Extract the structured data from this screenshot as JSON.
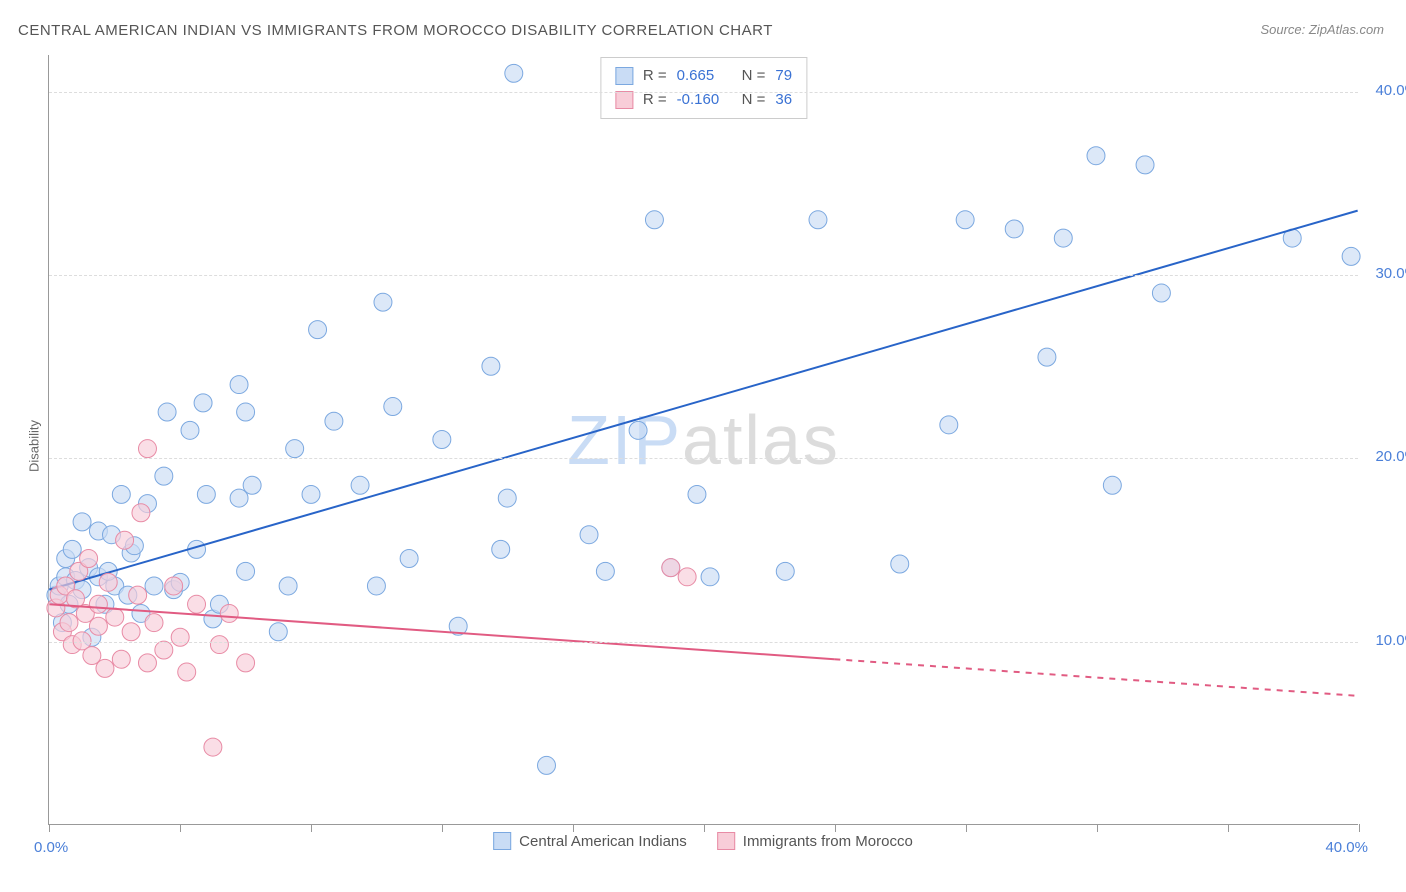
{
  "title": "CENTRAL AMERICAN INDIAN VS IMMIGRANTS FROM MOROCCO DISABILITY CORRELATION CHART",
  "source": "Source: ZipAtlas.com",
  "ylabel": "Disability",
  "watermark": {
    "prefix": "ZIP",
    "suffix": "atlas"
  },
  "chart": {
    "type": "scatter",
    "xlim": [
      0,
      40
    ],
    "ylim": [
      0,
      42
    ],
    "x_ticks": [
      0,
      4,
      8,
      12,
      16,
      20,
      24,
      28,
      32,
      36,
      40
    ],
    "x_tick_labels": {
      "0": "0.0%",
      "40": "40.0%"
    },
    "y_gridlines": [
      10,
      20,
      30,
      40
    ],
    "y_tick_labels": {
      "10": "10.0%",
      "20": "20.0%",
      "30": "30.0%",
      "40": "40.0%"
    },
    "grid_color": "#dddddd",
    "axis_color": "#999999",
    "background_color": "#ffffff",
    "tick_label_color": "#4a7fd8",
    "tick_label_fontsize": 15,
    "title_fontsize": 15,
    "title_color": "#555555",
    "series": [
      {
        "name": "Central American Indians",
        "color_fill": "#c9dcf5",
        "color_stroke": "#7ba8e0",
        "marker_radius": 9,
        "fill_opacity": 0.65,
        "R": "0.665",
        "N": "79",
        "stat_color": "#3a72d4",
        "trend": {
          "x1": 0,
          "y1": 12.8,
          "x2": 40,
          "y2": 33.5,
          "color": "#2864c8",
          "width": 2,
          "dash_from_x": null
        },
        "points": [
          [
            0.2,
            12.5
          ],
          [
            0.3,
            13.0
          ],
          [
            0.4,
            11.0
          ],
          [
            0.5,
            13.5
          ],
          [
            0.5,
            14.5
          ],
          [
            0.6,
            12.0
          ],
          [
            0.7,
            15.0
          ],
          [
            0.8,
            13.3
          ],
          [
            1.0,
            16.5
          ],
          [
            1.0,
            12.8
          ],
          [
            1.2,
            14.0
          ],
          [
            1.3,
            10.2
          ],
          [
            1.5,
            13.5
          ],
          [
            1.5,
            16.0
          ],
          [
            1.7,
            12.0
          ],
          [
            1.9,
            15.8
          ],
          [
            2.0,
            13.0
          ],
          [
            2.2,
            18.0
          ],
          [
            2.4,
            12.5
          ],
          [
            2.5,
            14.8
          ],
          [
            2.8,
            11.5
          ],
          [
            3.0,
            17.5
          ],
          [
            3.2,
            13.0
          ],
          [
            3.5,
            19.0
          ],
          [
            3.6,
            22.5
          ],
          [
            3.8,
            12.8
          ],
          [
            4.0,
            13.2
          ],
          [
            4.3,
            21.5
          ],
          [
            4.5,
            15.0
          ],
          [
            4.7,
            23.0
          ],
          [
            4.8,
            18.0
          ],
          [
            5.0,
            11.2
          ],
          [
            5.2,
            12.0
          ],
          [
            5.8,
            17.8
          ],
          [
            5.8,
            24.0
          ],
          [
            6.0,
            13.8
          ],
          [
            6.0,
            22.5
          ],
          [
            6.2,
            18.5
          ],
          [
            7.0,
            10.5
          ],
          [
            7.3,
            13.0
          ],
          [
            7.5,
            20.5
          ],
          [
            8.0,
            18.0
          ],
          [
            8.2,
            27.0
          ],
          [
            8.7,
            22.0
          ],
          [
            9.5,
            18.5
          ],
          [
            10.0,
            13.0
          ],
          [
            10.2,
            28.5
          ],
          [
            10.5,
            22.8
          ],
          [
            11.0,
            14.5
          ],
          [
            12.0,
            21.0
          ],
          [
            12.5,
            10.8
          ],
          [
            13.5,
            25.0
          ],
          [
            13.8,
            15.0
          ],
          [
            14.0,
            17.8
          ],
          [
            14.2,
            41.0
          ],
          [
            15.2,
            3.2
          ],
          [
            16.5,
            15.8
          ],
          [
            17.0,
            13.8
          ],
          [
            18.0,
            21.5
          ],
          [
            18.5,
            33.0
          ],
          [
            19.0,
            14.0
          ],
          [
            19.8,
            18.0
          ],
          [
            20.2,
            13.5
          ],
          [
            22.5,
            13.8
          ],
          [
            23.5,
            33.0
          ],
          [
            26.0,
            14.2
          ],
          [
            27.5,
            21.8
          ],
          [
            28.0,
            33.0
          ],
          [
            29.5,
            32.5
          ],
          [
            30.5,
            25.5
          ],
          [
            31.0,
            32.0
          ],
          [
            32.0,
            36.5
          ],
          [
            32.5,
            18.5
          ],
          [
            33.5,
            36.0
          ],
          [
            34.0,
            29.0
          ],
          [
            38.0,
            32.0
          ],
          [
            39.8,
            31.0
          ],
          [
            1.8,
            13.8
          ],
          [
            2.6,
            15.2
          ]
        ]
      },
      {
        "name": "Immigrants from Morocco",
        "color_fill": "#f8cdd8",
        "color_stroke": "#e88ba5",
        "marker_radius": 9,
        "fill_opacity": 0.65,
        "R": "-0.160",
        "N": "36",
        "stat_color": "#3a72d4",
        "trend": {
          "x1": 0,
          "y1": 12.0,
          "x2": 40,
          "y2": 7.0,
          "color": "#e15b82",
          "width": 2,
          "dash_from_x": 24
        },
        "points": [
          [
            0.2,
            11.8
          ],
          [
            0.3,
            12.5
          ],
          [
            0.4,
            10.5
          ],
          [
            0.5,
            13.0
          ],
          [
            0.6,
            11.0
          ],
          [
            0.7,
            9.8
          ],
          [
            0.8,
            12.3
          ],
          [
            0.9,
            13.8
          ],
          [
            1.0,
            10.0
          ],
          [
            1.1,
            11.5
          ],
          [
            1.2,
            14.5
          ],
          [
            1.3,
            9.2
          ],
          [
            1.5,
            12.0
          ],
          [
            1.5,
            10.8
          ],
          [
            1.7,
            8.5
          ],
          [
            1.8,
            13.2
          ],
          [
            2.0,
            11.3
          ],
          [
            2.2,
            9.0
          ],
          [
            2.3,
            15.5
          ],
          [
            2.5,
            10.5
          ],
          [
            2.7,
            12.5
          ],
          [
            2.8,
            17.0
          ],
          [
            3.0,
            8.8
          ],
          [
            3.0,
            20.5
          ],
          [
            3.2,
            11.0
          ],
          [
            3.5,
            9.5
          ],
          [
            3.8,
            13.0
          ],
          [
            4.0,
            10.2
          ],
          [
            4.2,
            8.3
          ],
          [
            4.5,
            12.0
          ],
          [
            5.0,
            4.2
          ],
          [
            5.2,
            9.8
          ],
          [
            5.5,
            11.5
          ],
          [
            6.0,
            8.8
          ],
          [
            19.0,
            14.0
          ],
          [
            19.5,
            13.5
          ]
        ]
      }
    ]
  },
  "legend_top": {
    "rows": [
      {
        "swatch_fill": "#c9dcf5",
        "swatch_stroke": "#7ba8e0",
        "R_label": "R =",
        "R_val": "0.665",
        "N_label": "N =",
        "N_val": "79"
      },
      {
        "swatch_fill": "#f8cdd8",
        "swatch_stroke": "#e88ba5",
        "R_label": "R =",
        "R_val": "-0.160",
        "N_label": "N =",
        "N_val": "36"
      }
    ]
  },
  "legend_bottom": {
    "items": [
      {
        "swatch_fill": "#c9dcf5",
        "swatch_stroke": "#7ba8e0",
        "label": "Central American Indians"
      },
      {
        "swatch_fill": "#f8cdd8",
        "swatch_stroke": "#e88ba5",
        "label": "Immigrants from Morocco"
      }
    ]
  }
}
